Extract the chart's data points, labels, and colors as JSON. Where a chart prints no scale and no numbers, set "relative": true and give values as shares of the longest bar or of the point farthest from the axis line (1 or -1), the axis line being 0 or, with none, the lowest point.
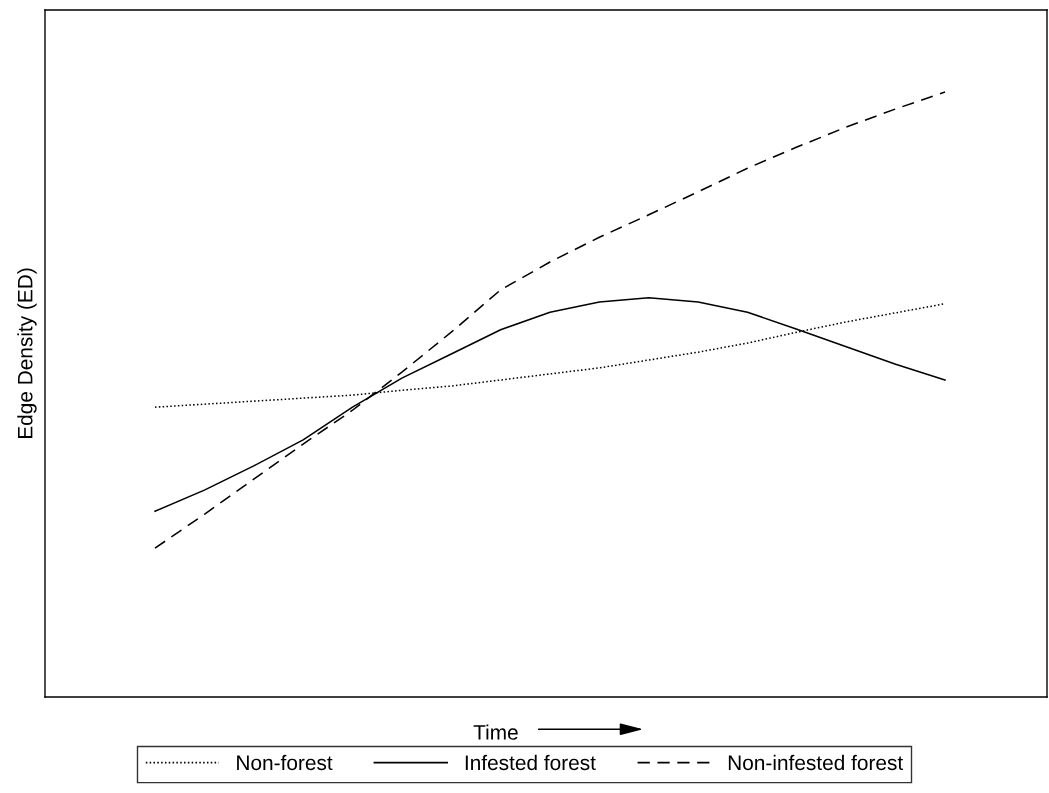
{
  "chart_data": {
    "type": "line",
    "relative": true,
    "xlabel": "Time",
    "ylabel": "Edge Density (ED)",
    "categories": [
      null,
      null,
      null,
      null,
      null,
      null,
      null,
      null,
      null,
      null,
      null,
      null,
      null,
      null,
      null,
      null,
      null
    ],
    "series": [
      {
        "name": "Non-forest",
        "color": "#000000",
        "line_style": "dotted",
        "values": [
          0.479,
          0.484,
          0.489,
          0.494,
          0.499,
          0.507,
          0.514,
          0.524,
          0.534,
          0.544,
          0.557,
          0.57,
          0.585,
          0.603,
          0.62,
          0.635,
          0.65
        ]
      },
      {
        "name": "Infested forest",
        "color": "#000000",
        "line_style": "solid",
        "values": [
          0.307,
          0.342,
          0.382,
          0.425,
          0.479,
          0.527,
          0.567,
          0.607,
          0.636,
          0.653,
          0.66,
          0.653,
          0.636,
          0.608,
          0.579,
          0.55,
          0.524
        ]
      },
      {
        "name": "Non-infested forest",
        "color": "#000000",
        "line_style": "dashed",
        "values": [
          0.246,
          0.302,
          0.36,
          0.418,
          0.474,
          0.537,
          0.603,
          0.673,
          0.719,
          0.76,
          0.797,
          0.835,
          0.874,
          0.909,
          0.942,
          0.972,
          1.0
        ]
      }
    ],
    "legend": "bottom",
    "grid": false,
    "marker": "none"
  }
}
